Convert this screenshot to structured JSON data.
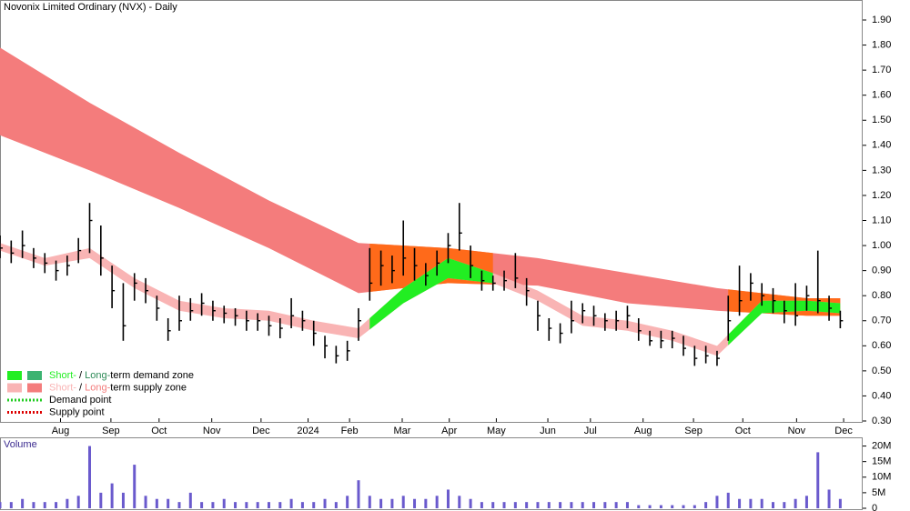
{
  "chart_data": {
    "type": "ohlc",
    "title": "Novonix Limited Ordinary (NVX) - Daily",
    "xlim": [
      0,
      77
    ],
    "xticks": [
      {
        "value": 5.4,
        "label": "Aug"
      },
      {
        "value": 9.9,
        "label": "Sep"
      },
      {
        "value": 14.2,
        "label": "Oct"
      },
      {
        "value": 18.9,
        "label": "Nov"
      },
      {
        "value": 23.3,
        "label": "Dec"
      },
      {
        "value": 27.5,
        "label": "2024"
      },
      {
        "value": 31.2,
        "label": "Feb"
      },
      {
        "value": 35.9,
        "label": "Mar"
      },
      {
        "value": 40.1,
        "label": "Apr"
      },
      {
        "value": 44.3,
        "label": "May"
      },
      {
        "value": 48.9,
        "label": "Jun"
      },
      {
        "value": 52.7,
        "label": "Jul"
      },
      {
        "value": 57.4,
        "label": "Aug"
      },
      {
        "value": 61.9,
        "label": "Sep"
      },
      {
        "value": 66.3,
        "label": "Oct"
      },
      {
        "value": 71.1,
        "label": "Nov"
      },
      {
        "value": 75.3,
        "label": "Dec"
      }
    ],
    "ylim": [
      0.3,
      1.9
    ],
    "yticks": [
      {
        "value": 0.3,
        "label": "0.30"
      },
      {
        "value": 0.4,
        "label": "0.40"
      },
      {
        "value": 0.5,
        "label": "0.50"
      },
      {
        "value": 0.6,
        "label": "0.60"
      },
      {
        "value": 0.7,
        "label": "0.70"
      },
      {
        "value": 0.8,
        "label": "0.80"
      },
      {
        "value": 0.9,
        "label": "0.90"
      },
      {
        "value": 1.0,
        "label": "1.00"
      },
      {
        "value": 1.1,
        "label": "1.10"
      },
      {
        "value": 1.2,
        "label": "1.20"
      },
      {
        "value": 1.3,
        "label": "1.30"
      },
      {
        "value": 1.4,
        "label": "1.40"
      },
      {
        "value": 1.5,
        "label": "1.50"
      },
      {
        "value": 1.6,
        "label": "1.60"
      },
      {
        "value": 1.7,
        "label": "1.70"
      },
      {
        "value": 1.8,
        "label": "1.80"
      },
      {
        "value": 1.9,
        "label": "1.90"
      }
    ],
    "price": {
      "color": "#000000",
      "x": [
        0,
        1,
        2,
        3,
        4,
        5,
        6,
        7,
        8,
        9,
        10,
        11,
        12,
        13,
        14,
        15,
        16,
        17,
        18,
        19,
        20,
        21,
        22,
        23,
        24,
        25,
        26,
        27,
        28,
        29,
        30,
        31,
        32,
        33,
        34,
        35,
        36,
        37,
        38,
        39,
        40,
        41,
        42,
        43,
        44,
        45,
        46,
        47,
        48,
        49,
        50,
        51,
        52,
        53,
        54,
        55,
        56,
        57,
        58,
        59,
        60,
        61,
        62,
        63,
        64,
        65,
        66,
        67,
        68,
        69,
        70,
        71,
        72,
        73,
        74,
        75
      ],
      "high": [
        1.04,
        1.02,
        1.06,
        0.99,
        0.97,
        0.94,
        0.96,
        1.03,
        1.17,
        1.08,
        0.92,
        0.85,
        0.89,
        0.87,
        0.8,
        0.71,
        0.8,
        0.79,
        0.81,
        0.78,
        0.76,
        0.75,
        0.74,
        0.73,
        0.72,
        0.71,
        0.79,
        0.74,
        0.7,
        0.64,
        0.6,
        0.62,
        0.75,
        0.99,
        0.98,
        0.96,
        1.1,
        0.99,
        0.93,
        0.98,
        1.05,
        1.17,
        1.0,
        0.9,
        0.88,
        0.9,
        0.97,
        0.87,
        0.78,
        0.71,
        0.69,
        0.78,
        0.77,
        0.76,
        0.73,
        0.74,
        0.76,
        0.71,
        0.66,
        0.66,
        0.66,
        0.64,
        0.6,
        0.6,
        0.58,
        0.8,
        0.92,
        0.89,
        0.85,
        0.83,
        0.78,
        0.85,
        0.84,
        0.98,
        0.8,
        0.74
      ],
      "low": [
        0.95,
        0.93,
        0.95,
        0.91,
        0.89,
        0.86,
        0.88,
        0.93,
        0.97,
        0.88,
        0.75,
        0.62,
        0.78,
        0.77,
        0.7,
        0.62,
        0.66,
        0.7,
        0.72,
        0.7,
        0.69,
        0.68,
        0.66,
        0.66,
        0.64,
        0.63,
        0.67,
        0.66,
        0.6,
        0.55,
        0.53,
        0.54,
        0.62,
        0.78,
        0.84,
        0.85,
        0.88,
        0.86,
        0.84,
        0.88,
        0.93,
        0.98,
        0.87,
        0.82,
        0.82,
        0.82,
        0.83,
        0.76,
        0.66,
        0.62,
        0.61,
        0.65,
        0.69,
        0.68,
        0.66,
        0.66,
        0.67,
        0.62,
        0.6,
        0.59,
        0.59,
        0.56,
        0.52,
        0.53,
        0.52,
        0.62,
        0.72,
        0.78,
        0.76,
        0.73,
        0.69,
        0.68,
        0.74,
        0.73,
        0.7,
        0.67
      ],
      "close": [
        0.99,
        0.97,
        1.0,
        0.95,
        0.93,
        0.9,
        0.92,
        0.98,
        1.1,
        0.95,
        0.82,
        0.68,
        0.85,
        0.82,
        0.75,
        0.66,
        0.7,
        0.74,
        0.77,
        0.74,
        0.73,
        0.72,
        0.7,
        0.7,
        0.68,
        0.67,
        0.72,
        0.7,
        0.65,
        0.6,
        0.56,
        0.58,
        0.7,
        0.85,
        0.92,
        0.9,
        0.95,
        0.92,
        0.88,
        0.93,
        1.0,
        1.05,
        0.92,
        0.86,
        0.85,
        0.86,
        0.87,
        0.82,
        0.72,
        0.67,
        0.65,
        0.7,
        0.74,
        0.72,
        0.7,
        0.7,
        0.72,
        0.66,
        0.62,
        0.62,
        0.63,
        0.59,
        0.55,
        0.56,
        0.55,
        0.7,
        0.78,
        0.85,
        0.8,
        0.78,
        0.74,
        0.72,
        0.8,
        0.78,
        0.75,
        0.7
      ]
    },
    "long_zone": {
      "supply_color": "#f47c7c",
      "demand_color": "#ff6a1a",
      "x": [
        0,
        8,
        16,
        24,
        32,
        40,
        48,
        56,
        64,
        72,
        75
      ],
      "upper": [
        1.79,
        1.57,
        1.37,
        1.18,
        1.01,
        0.99,
        0.95,
        0.89,
        0.83,
        0.79,
        0.79
      ],
      "lower": [
        1.44,
        1.3,
        1.15,
        0.99,
        0.81,
        0.85,
        0.84,
        0.77,
        0.74,
        0.72,
        0.72
      ]
    },
    "short_zone": {
      "supply_color": "#f9b4b4",
      "demand_color": "#22ee22",
      "x": [
        0,
        4,
        8,
        12,
        16,
        20,
        24,
        28,
        32,
        36,
        40,
        44,
        48,
        52,
        56,
        60,
        64,
        68,
        72,
        75
      ],
      "upper": [
        1.01,
        0.95,
        0.99,
        0.87,
        0.78,
        0.75,
        0.74,
        0.7,
        0.67,
        0.83,
        0.95,
        0.89,
        0.82,
        0.72,
        0.7,
        0.66,
        0.6,
        0.78,
        0.78,
        0.77
      ],
      "lower": [
        0.98,
        0.92,
        0.95,
        0.83,
        0.74,
        0.71,
        0.7,
        0.66,
        0.63,
        0.77,
        0.87,
        0.85,
        0.78,
        0.68,
        0.66,
        0.62,
        0.56,
        0.73,
        0.74,
        0.73
      ]
    },
    "demand_periods": [
      [
        33,
        44
      ],
      [
        65,
        75
      ]
    ],
    "legend": [
      {
        "parts": [
          "Short-",
          " / ",
          "Long-",
          "term demand zone"
        ]
      },
      {
        "parts": [
          "Short-",
          " / ",
          "Long-",
          "term supply zone"
        ]
      },
      {
        "parts": [
          "Demand point"
        ]
      },
      {
        "parts": [
          "Supply point"
        ]
      }
    ],
    "volume": {
      "label": "Volume",
      "color": "#6a5acd",
      "ylim": [
        0,
        22.5
      ],
      "yticks": [
        {
          "value": 0,
          "label": "0"
        },
        {
          "value": 5,
          "label": "5M"
        },
        {
          "value": 10,
          "label": "10M"
        },
        {
          "value": 15,
          "label": "15M"
        },
        {
          "value": 20,
          "label": "20M"
        }
      ],
      "values": [
        2,
        2,
        3,
        2,
        2,
        2,
        3,
        4,
        20,
        5,
        8,
        5,
        14,
        4,
        3,
        3,
        2,
        5,
        2,
        2,
        3,
        2,
        2,
        2,
        2,
        2,
        3,
        2,
        2,
        3,
        2,
        4,
        9,
        4,
        3,
        3,
        4,
        3,
        3,
        4,
        6,
        4,
        3,
        2,
        2,
        2,
        2,
        2,
        2,
        2,
        2,
        2,
        2,
        2,
        2,
        2,
        2,
        1,
        1,
        1,
        1,
        1,
        1,
        2,
        4,
        5,
        3,
        3,
        3,
        2,
        2,
        3,
        4,
        18,
        6,
        3
      ]
    }
  }
}
